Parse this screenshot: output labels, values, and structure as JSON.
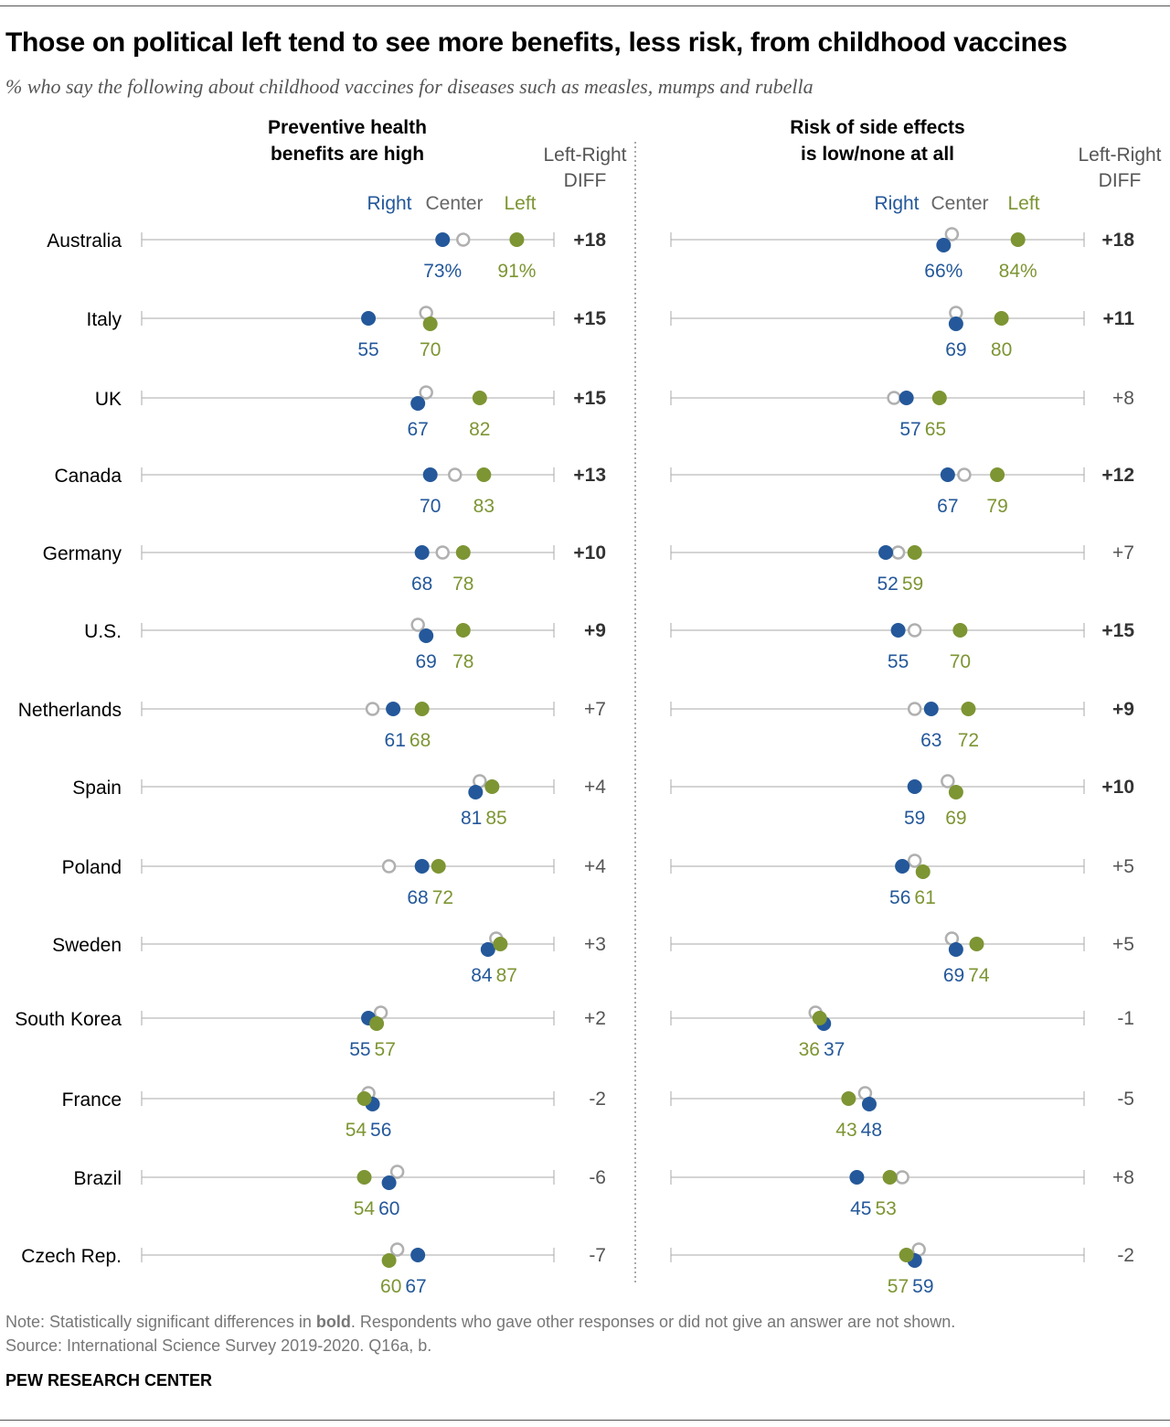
{
  "title": "Those on political left tend to see more benefits, less risk, from childhood vaccines",
  "subtitle": "% who say the following about childhood vaccines for diseases such as measles, mumps and rubella",
  "note_prefix": "Note: Statistically significant differences in ",
  "note_bold": "bold",
  "note_suffix": ". Respondents who gave other responses or did not give an answer are not shown.",
  "source": "Source: International Science Survey 2019-2020. Q16a, b.",
  "brand": "PEW RESEARCH CENTER",
  "colors": {
    "right": "#24589a",
    "center": "#b0b0b0",
    "left": "#7d9533",
    "axis": "#aaaaaa"
  },
  "chart_data": [
    {
      "type": "dot",
      "title": "Preventive health benefits are high",
      "diff_header": "Left-Right DIFF",
      "legend": {
        "right": "Right",
        "center": "Center",
        "left": "Left"
      },
      "xlim": [
        0,
        100
      ],
      "categories": [
        "Australia",
        "Italy",
        "UK",
        "Canada",
        "Germany",
        "U.S.",
        "Netherlands",
        "Spain",
        "Poland",
        "Sweden",
        "South Korea",
        "France",
        "Brazil",
        "Czech Rep."
      ],
      "series": [
        {
          "name": "Right",
          "values": [
            73,
            55,
            67,
            70,
            68,
            69,
            61,
            81,
            68,
            84,
            55,
            56,
            60,
            67
          ]
        },
        {
          "name": "Center",
          "values": [
            78,
            69,
            69,
            76,
            73,
            67,
            56,
            82,
            60,
            86,
            58,
            55,
            62,
            62
          ]
        },
        {
          "name": "Left",
          "values": [
            91,
            70,
            82,
            83,
            78,
            78,
            68,
            85,
            72,
            87,
            57,
            54,
            54,
            60
          ]
        }
      ],
      "diff": [
        "+18",
        "+15",
        "+15",
        "+13",
        "+10",
        "+9",
        "+7",
        "+4",
        "+4",
        "+3",
        "+2",
        "-2",
        "-6",
        "-7"
      ],
      "significant": [
        true,
        true,
        true,
        true,
        true,
        true,
        false,
        false,
        false,
        false,
        false,
        false,
        false,
        false
      ]
    },
    {
      "type": "dot",
      "title": "Risk of side effects is low/none at all",
      "diff_header": "Left-Right DIFF",
      "legend": {
        "right": "Right",
        "center": "Center",
        "left": "Left"
      },
      "xlim": [
        0,
        100
      ],
      "categories": [
        "Australia",
        "Italy",
        "UK",
        "Canada",
        "Germany",
        "U.S.",
        "Netherlands",
        "Spain",
        "Poland",
        "Sweden",
        "South Korea",
        "France",
        "Brazil",
        "Czech Rep."
      ],
      "series": [
        {
          "name": "Right",
          "values": [
            66,
            69,
            57,
            67,
            52,
            55,
            63,
            59,
            56,
            69,
            37,
            48,
            45,
            59
          ]
        },
        {
          "name": "Center",
          "values": [
            68,
            69,
            54,
            71,
            55,
            59,
            59,
            67,
            59,
            68,
            35,
            47,
            56,
            60
          ]
        },
        {
          "name": "Left",
          "values": [
            84,
            80,
            65,
            79,
            59,
            70,
            72,
            69,
            61,
            74,
            36,
            43,
            53,
            57
          ]
        }
      ],
      "diff": [
        "+18",
        "+11",
        "+8",
        "+12",
        "+7",
        "+15",
        "+9",
        "+10",
        "+5",
        "+5",
        "-1",
        "-5",
        "+8",
        "-2"
      ],
      "significant": [
        true,
        true,
        false,
        true,
        false,
        true,
        true,
        true,
        false,
        false,
        false,
        false,
        false,
        false
      ]
    }
  ]
}
